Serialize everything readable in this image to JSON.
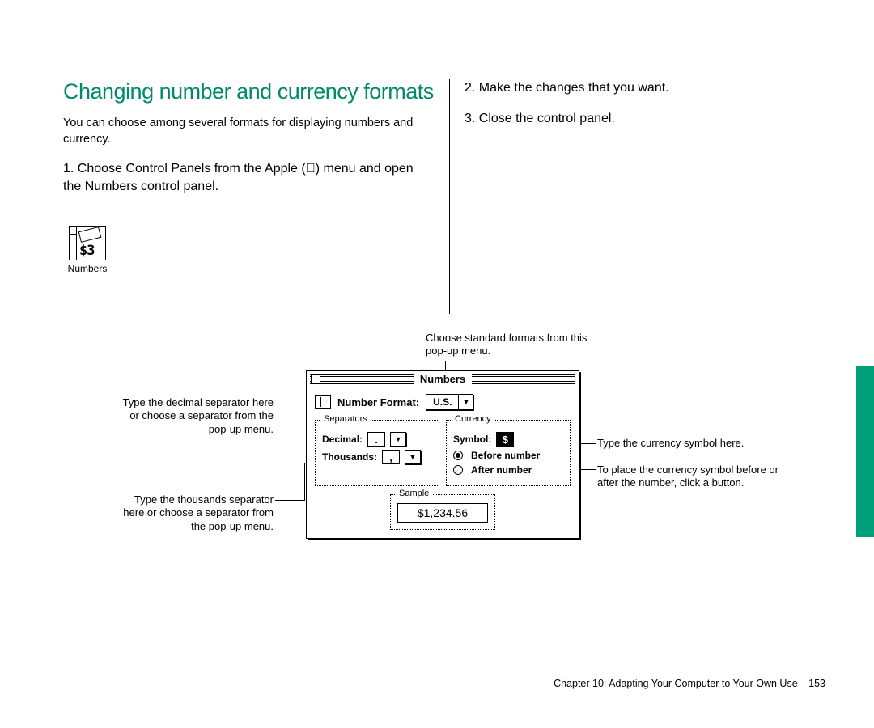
{
  "heading": "Changing number and currency formats",
  "intro": "You can choose among several formats for displaying numbers and currency.",
  "steps": {
    "s1_num": "1.",
    "s1_text": "Choose Control Panels from the Apple () menu and open the Numbers control panel.",
    "s2_num": "2.",
    "s2_text": "Make the changes that you want.",
    "s3_num": "3.",
    "s3_text": "Close the control panel."
  },
  "icon_label": "Numbers",
  "icon_digits": "$3",
  "callouts": {
    "top": "Choose standard formats from this pop-up menu.",
    "decimal": "Type the decimal separator here or choose a separator from the pop-up menu.",
    "thousands": "Type the thousands separator here or choose a separator from the pop-up menu.",
    "symbol": "Type the currency symbol here.",
    "position": "To place the currency symbol before or after the number, click a button."
  },
  "window": {
    "title": "Numbers",
    "format_label": "Number Format:",
    "format_value": "U.S.",
    "group_separators": "Separators",
    "group_currency": "Currency",
    "group_sample": "Sample",
    "decimal_label": "Decimal:",
    "decimal_value": ".",
    "thousands_label": "Thousands:",
    "thousands_value": ",",
    "symbol_label": "Symbol:",
    "symbol_value": "$",
    "radio_before": "Before number",
    "radio_after": "After number",
    "sample_value": "$1,234.56"
  },
  "footer": {
    "chapter": "Chapter 10: Adapting Your Computer to Your Own Use",
    "page": "153"
  },
  "colors": {
    "accent": "#008a6a",
    "tab": "#00a07a"
  }
}
